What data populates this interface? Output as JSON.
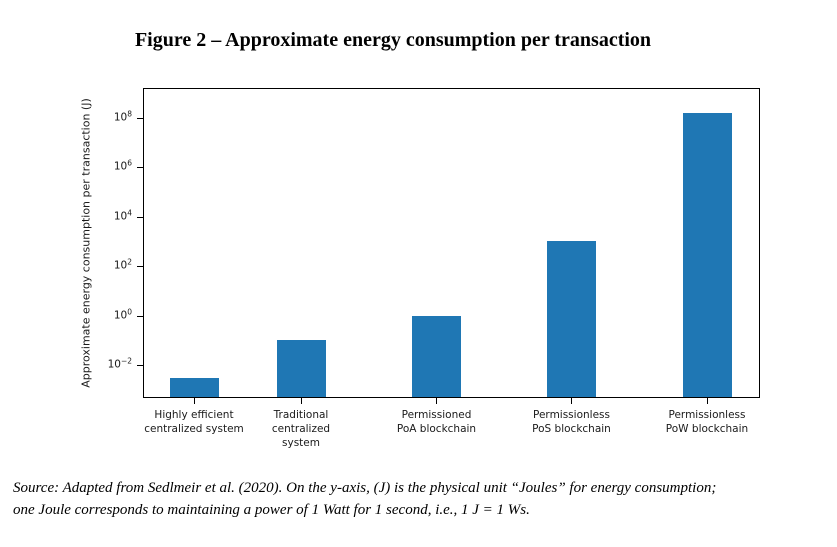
{
  "page": {
    "title": "Figure 2 – Approximate energy consumption per transaction",
    "source_note": {
      "line1": "Source: Adapted from Sedlmeir et al. (2020). On the y-axis, (J) is the physical unit “Joules” for energy consumption;",
      "line2": "one Joule corresponds to maintaining a power of 1 Watt for 1 second, i.e., 1 J = 1 Ws."
    }
  },
  "chart_data": {
    "type": "bar",
    "title": "Figure 2 – Approximate energy consumption per transaction",
    "xlabel": "",
    "ylabel": "Approximate energy consumption per transaction (J)",
    "unit": "J",
    "yscale": "log",
    "categories": [
      "Highly efficient\ncentralized system",
      "Traditional\ncentralized\nsystem",
      "Permissioned\nPoA blockchain",
      "Permissionless\nPoS blockchain",
      "Permissionless\nPoW blockchain"
    ],
    "values": [
      0.003,
      0.1,
      1,
      1000,
      150000000
    ],
    "ytick_exponents": [
      8,
      6,
      4,
      2,
      0,
      -2
    ],
    "ytick_base": "10",
    "ylim_log10": [
      -3.33,
      9.2
    ],
    "bar_color": "#1f77b4",
    "grid": false,
    "legend": null
  }
}
